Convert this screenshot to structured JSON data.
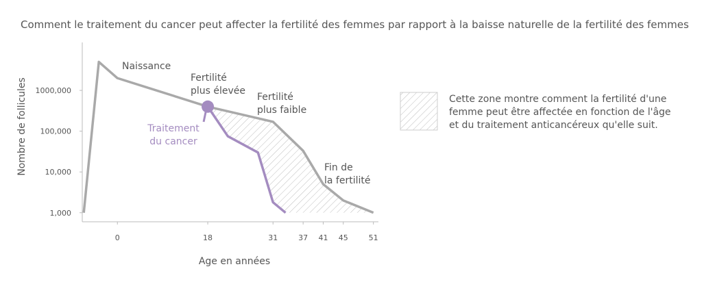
{
  "chart_data": {
    "type": "line",
    "title": "Comment le traitement du cancer peut affecter la fertilité des femmes par rapport à la baisse naturelle de la fertilité des femmes",
    "xlabel": "Age en années",
    "ylabel": "Nombre de follicules",
    "y_scale": "log",
    "xlim": [
      -7,
      52
    ],
    "ylim": [
      600,
      15000000
    ],
    "xticks": [
      0,
      18,
      31,
      37,
      41,
      45,
      51
    ],
    "yticks": [
      {
        "value": 1000,
        "label": "1,000"
      },
      {
        "value": 10000,
        "label": "10,000"
      },
      {
        "value": 100000,
        "label": "100,000"
      },
      {
        "value": 1000000,
        "label": "1000,000"
      }
    ],
    "series": [
      {
        "color": "#a9a9a9",
        "x": [
          -6.7,
          -3.7,
          0,
          18,
          31,
          37,
          41,
          45,
          51
        ],
        "values": [
          1000,
          5000000,
          2000000,
          400000,
          170000,
          33000,
          5000,
          2000,
          1000
        ]
      },
      {
        "color": "#a48cc0",
        "x": [
          18,
          22,
          28,
          31,
          33.5
        ],
        "values": [
          400000,
          75000,
          30000,
          1800,
          1000
        ]
      }
    ],
    "annotations": [
      [
        "Naissance"
      ],
      [
        "Fertilité",
        "plus élevée"
      ],
      [
        "Fertilité",
        "plus faible"
      ],
      [
        "Fin de",
        "la fertilité"
      ],
      [
        "Traitement",
        "du cancer"
      ]
    ],
    "hatch_legend": [
      "Cette zone montre comment la fertilité d'une",
      "femme peut être affectée en fonction de l'âge",
      "et du traitement anticancéreux qu'elle suit."
    ]
  }
}
